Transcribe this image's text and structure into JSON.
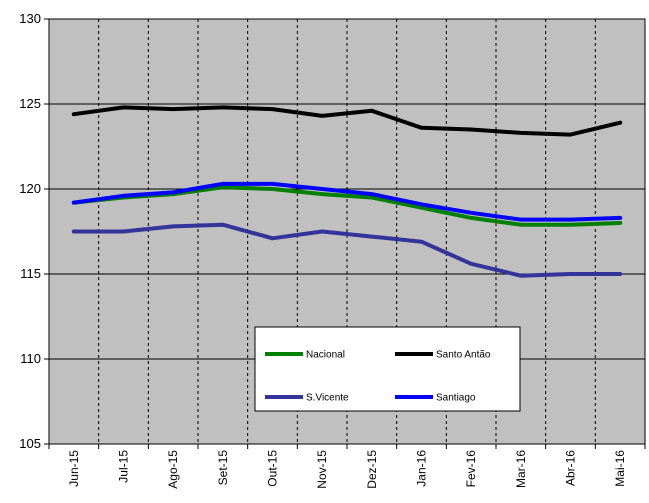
{
  "chart_data": {
    "type": "line",
    "categories": [
      "Jun-15",
      "Jul-15",
      "Ago-15",
      "Set-15",
      "Out-15",
      "Nov-15",
      "Dez-15",
      "Jan-16",
      "Fev-16",
      "Mar-16",
      "Abr-16",
      "Mai-16"
    ],
    "ylim": [
      105,
      130
    ],
    "yticks": [
      "105",
      "110",
      "115",
      "120",
      "125",
      "130"
    ],
    "grid": true,
    "legend_position": "bottom-center",
    "plot_background": "#c0c0c0",
    "series": [
      {
        "name": "Nacional",
        "color": "#008000",
        "values": [
          119.2,
          119.5,
          119.7,
          120.1,
          120.0,
          119.7,
          119.5,
          118.9,
          118.3,
          117.9,
          117.9,
          118.0
        ]
      },
      {
        "name": "Santo Antão",
        "color": "#000000",
        "values": [
          124.4,
          124.8,
          124.7,
          124.8,
          124.7,
          124.3,
          124.6,
          123.6,
          123.5,
          123.3,
          123.2,
          123.9
        ]
      },
      {
        "name": "S.Vicente",
        "color": "#333399",
        "values": [
          117.5,
          117.5,
          117.8,
          117.9,
          117.1,
          117.5,
          117.2,
          116.9,
          115.6,
          114.9,
          115.0,
          115.0
        ]
      },
      {
        "name": "Santiago",
        "color": "#0000ff",
        "values": [
          119.2,
          119.6,
          119.8,
          120.3,
          120.3,
          120.0,
          119.7,
          119.1,
          118.6,
          118.2,
          118.2,
          118.3
        ]
      }
    ]
  }
}
